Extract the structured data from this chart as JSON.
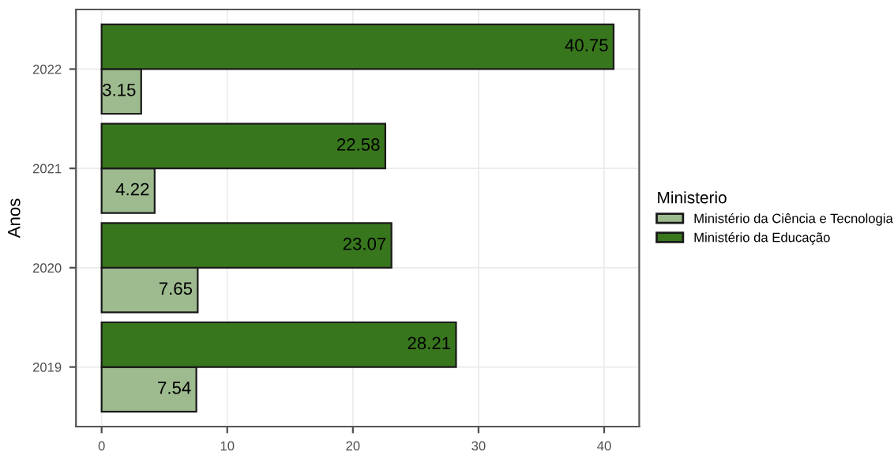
{
  "chart_data": {
    "type": "bar",
    "orientation": "horizontal",
    "ylabel": "Anos",
    "legend_title": "Ministerio",
    "legend": "right",
    "categories": [
      "2022",
      "2021",
      "2020",
      "2019"
    ],
    "series": [
      {
        "name": "Ministério da Ciência e Tecnologia",
        "color": "#9dbb8e",
        "values": [
          3.15,
          4.22,
          7.65,
          7.54
        ]
      },
      {
        "name": "Ministério da Educação",
        "color": "#38761d",
        "values": [
          40.75,
          22.58,
          23.07,
          28.21
        ]
      }
    ],
    "data_labels": true,
    "xlim": [
      -2.04,
      42.79
    ],
    "xticks": [
      0,
      10,
      20,
      30,
      40
    ],
    "grid": true
  }
}
